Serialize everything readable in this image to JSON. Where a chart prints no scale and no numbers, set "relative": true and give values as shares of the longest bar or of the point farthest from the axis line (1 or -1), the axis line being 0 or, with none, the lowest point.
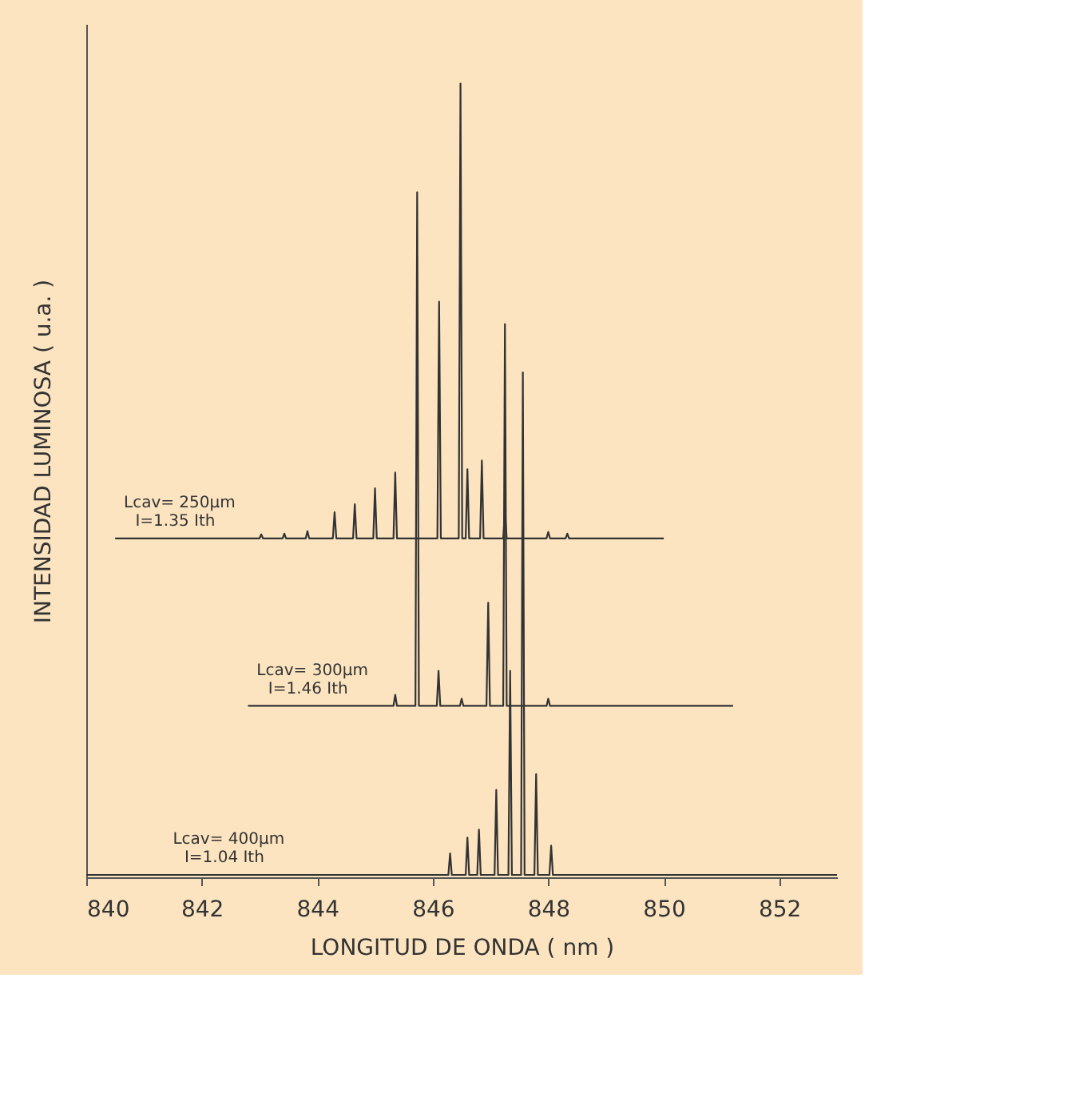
{
  "chart_data": {
    "type": "line",
    "relative": true,
    "xlabel": "LONGITUD DE ONDA ( nm )",
    "ylabel": "INTENSIDAD LUMINOSA ( u.a. )",
    "xlim": [
      840,
      853
    ],
    "xticks": [
      840,
      842,
      844,
      846,
      848,
      850,
      852
    ],
    "grid": false,
    "marker": "none",
    "line_style": "solid",
    "series": [
      {
        "color": "#333333",
        "x": [
          840.5,
          843.0,
          843.03,
          843.06,
          843.4,
          843.43,
          843.46,
          843.8,
          843.83,
          843.86,
          844.27,
          844.3,
          844.33,
          844.62,
          844.65,
          844.68,
          844.97,
          845.0,
          845.03,
          845.32,
          845.35,
          845.38,
          846.08,
          846.11,
          846.14,
          846.45,
          846.48,
          846.51,
          846.57,
          846.6,
          846.63,
          846.82,
          846.85,
          846.88,
          847.22,
          847.25,
          847.28,
          847.97,
          848.0,
          848.03,
          848.3,
          848.33,
          848.36,
          850.0
        ],
        "values": [
          0.427,
          0.427,
          0.432,
          0.427,
          0.427,
          0.433,
          0.427,
          0.427,
          0.436,
          0.427,
          0.427,
          0.46,
          0.427,
          0.427,
          0.47,
          0.427,
          0.427,
          0.49,
          0.427,
          0.427,
          0.51,
          0.427,
          0.427,
          0.725,
          0.427,
          0.427,
          1.0,
          0.427,
          0.427,
          0.514,
          0.427,
          0.427,
          0.525,
          0.427,
          0.427,
          0.462,
          0.427,
          0.427,
          0.435,
          0.427,
          0.427,
          0.433,
          0.427,
          0.427
        ]
      },
      {
        "color": "#333333",
        "x": [
          842.8,
          845.32,
          845.35,
          845.38,
          845.7,
          845.73,
          845.76,
          846.07,
          846.1,
          846.13,
          846.47,
          846.5,
          846.53,
          846.93,
          846.96,
          846.99,
          847.22,
          847.25,
          847.28,
          847.97,
          848.0,
          848.03,
          851.2
        ],
        "values": [
          0.216,
          0.216,
          0.23,
          0.216,
          0.216,
          0.863,
          0.216,
          0.216,
          0.26,
          0.216,
          0.216,
          0.225,
          0.216,
          0.216,
          0.346,
          0.216,
          0.216,
          0.697,
          0.216,
          0.216,
          0.225,
          0.216,
          0.216
        ]
      },
      {
        "color": "#333333",
        "x": [
          840.0,
          846.27,
          846.3,
          846.33,
          846.57,
          846.6,
          846.63,
          846.77,
          846.8,
          846.83,
          847.07,
          847.1,
          847.13,
          847.31,
          847.34,
          847.37,
          847.53,
          847.56,
          847.59,
          847.76,
          847.79,
          847.82,
          848.02,
          848.05,
          848.08,
          853.0
        ],
        "values": [
          0.003,
          0.003,
          0.03,
          0.003,
          0.003,
          0.05,
          0.003,
          0.003,
          0.06,
          0.003,
          0.003,
          0.11,
          0.003,
          0.003,
          0.26,
          0.003,
          0.003,
          0.636,
          0.003,
          0.003,
          0.13,
          0.003,
          0.003,
          0.04,
          0.003,
          0.003
        ]
      }
    ],
    "annotations": [
      "Lcav= 250µm",
      "I=1.35 Ith",
      "Lcav= 300µm",
      "I=1.46 Ith",
      "Lcav= 400µm",
      "I=1.04 Ith"
    ]
  }
}
